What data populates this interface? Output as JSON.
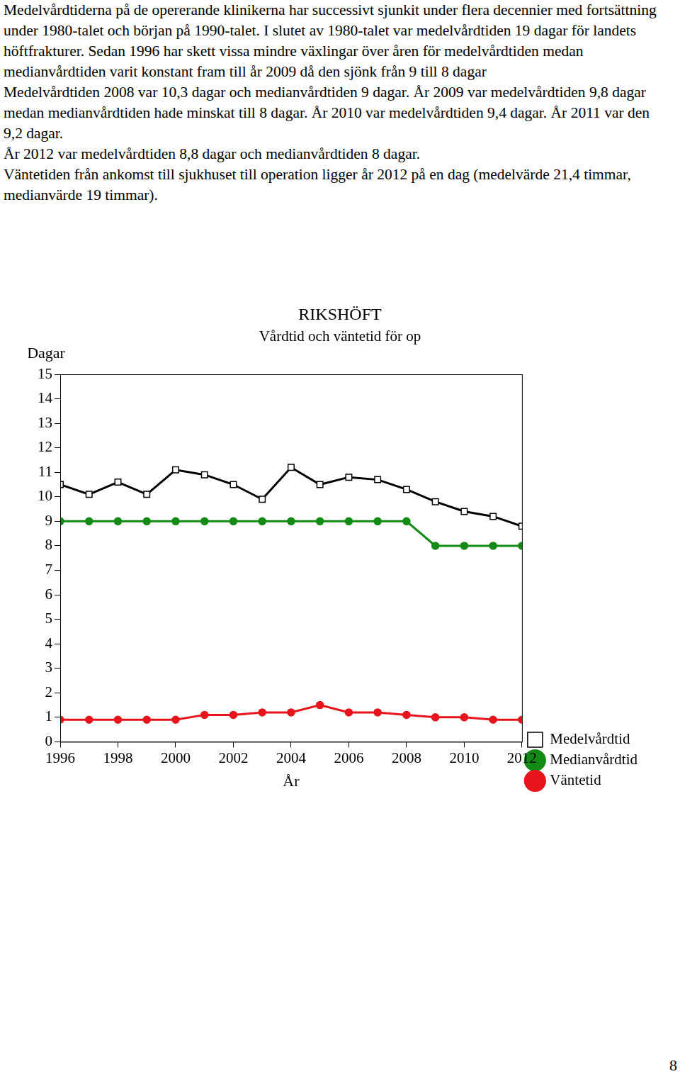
{
  "paragraphs": [
    "Medelvårdtiderna på de opererande klinikerna har successivt sjunkit under flera decennier med fortsättning under 1980-talet och början på 1990-talet. I slutet av 1980-talet var medelvårdtiden 19 dagar för landets höftfrakturer. Sedan 1996 har skett vissa mindre växlingar över åren för medelvårdtiden medan medianvårdtiden varit konstant fram till år 2009 då den sjönk från 9 till 8 dagar",
    "Medelvårdtiden 2008 var 10,3 dagar och medianvårdtiden 9 dagar. År 2009 var medelvårdtiden 9,8 dagar medan medianvårdtiden hade minskat till 8 dagar. År 2010 var medelvårdtiden 9,4 dagar. År 2011 var den 9,2 dagar.",
    "År 2012 var medelvårdtiden 8,8 dagar och medianvårdtiden 8 dagar.",
    "Väntetiden från ankomst till sjukhuset till operation ligger år 2012 på en dag (medelvärde 21,4 timmar, medianvärde 19 timmar)."
  ],
  "page_number": "8",
  "chart_data": {
    "type": "line",
    "title": "RIKSHÖFT",
    "subtitle": "Vårdtid och väntetid för op",
    "y_label": "Dagar",
    "x_label": "År",
    "x": [
      1996,
      1997,
      1998,
      1999,
      2000,
      2001,
      2002,
      2003,
      2004,
      2005,
      2006,
      2007,
      2008,
      2009,
      2010,
      2011,
      2012
    ],
    "series": [
      {
        "name": "Medelvårdtid",
        "color": "#000000",
        "marker": "square",
        "values": [
          10.5,
          10.1,
          10.6,
          10.1,
          11.1,
          10.9,
          10.5,
          9.9,
          11.2,
          10.5,
          10.8,
          10.7,
          10.3,
          9.8,
          9.4,
          9.2,
          8.8
        ]
      },
      {
        "name": "Medianvårdtid",
        "color": "#138a13",
        "marker": "circle",
        "values": [
          9,
          9,
          9,
          9,
          9,
          9,
          9,
          9,
          9,
          9,
          9,
          9,
          9,
          8,
          8,
          8,
          8
        ]
      },
      {
        "name": "Väntetid",
        "color": "#e8141b",
        "marker": "circle",
        "values": [
          0.9,
          0.9,
          0.9,
          0.9,
          0.9,
          1.1,
          1.1,
          1.2,
          1.2,
          1.5,
          1.2,
          1.2,
          1.1,
          1.0,
          1.0,
          0.9,
          0.9
        ]
      }
    ],
    "xlim": [
      1996,
      2012
    ],
    "xticks": [
      1996,
      1998,
      2000,
      2002,
      2004,
      2006,
      2008,
      2010,
      2012
    ],
    "ylim": [
      0,
      15
    ],
    "yticks": [
      0,
      1,
      2,
      3,
      4,
      5,
      6,
      7,
      8,
      9,
      10,
      11,
      12,
      13,
      14,
      15
    ],
    "grid": false,
    "legend": "right"
  }
}
